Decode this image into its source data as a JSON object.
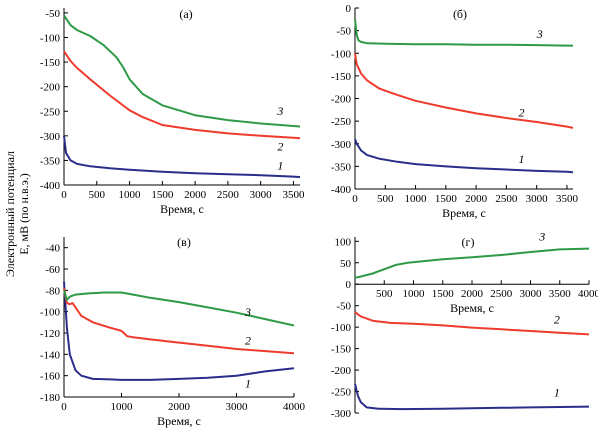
{
  "figure": {
    "ylabel_line1": "Электронный потенциал",
    "ylabel_line2": "E, мВ (по н.в.э.)"
  },
  "colors": {
    "1": "#2a2d8a",
    "2": "#ee3b2e",
    "3": "#2e9a45",
    "axis": "#000000"
  },
  "chart_data": [
    {
      "type": "line",
      "panel": "(а)",
      "xlabel": "Время, с",
      "ylabel": "",
      "xlim": [
        0,
        3600
      ],
      "ylim": [
        -400,
        -40
      ],
      "xticks": [
        0,
        500,
        1000,
        1500,
        2000,
        2500,
        3000,
        3500
      ],
      "yticks": [
        -400,
        -350,
        -300,
        -250,
        -200,
        -150,
        -100,
        -50
      ],
      "series": [
        {
          "name": "1",
          "x": [
            0,
            30,
            100,
            200,
            400,
            700,
            1000,
            1500,
            2000,
            2500,
            3000,
            3500,
            3600
          ],
          "y": [
            -300,
            -335,
            -350,
            -357,
            -362,
            -366,
            -369,
            -373,
            -376,
            -378,
            -380,
            -383,
            -384
          ]
        },
        {
          "name": "2",
          "x": [
            0,
            100,
            200,
            400,
            700,
            1000,
            1200,
            1500,
            2000,
            2500,
            3000,
            3500,
            3600
          ],
          "y": [
            -128,
            -148,
            -162,
            -185,
            -218,
            -248,
            -262,
            -278,
            -288,
            -295,
            -300,
            -304,
            -305
          ]
        },
        {
          "name": "3",
          "x": [
            0,
            100,
            200,
            400,
            600,
            800,
            900,
            1000,
            1200,
            1500,
            2000,
            2500,
            3000,
            3500,
            3600
          ],
          "y": [
            -55,
            -75,
            -85,
            -97,
            -115,
            -140,
            -160,
            -185,
            -215,
            -238,
            -258,
            -268,
            -275,
            -280,
            -281
          ]
        }
      ],
      "curve_labels": [
        {
          "series": "1",
          "text": "1"
        },
        {
          "series": "2",
          "text": "2"
        },
        {
          "series": "3",
          "text": "3"
        }
      ]
    },
    {
      "type": "line",
      "panel": "(б)",
      "xlabel": "Время, с",
      "ylabel": "",
      "xlim": [
        0,
        3600
      ],
      "ylim": [
        -400,
        0
      ],
      "xticks": [
        0,
        500,
        1000,
        1500,
        2000,
        2500,
        3000,
        3500
      ],
      "yticks": [
        -400,
        -350,
        -300,
        -250,
        -200,
        -150,
        -100,
        -50,
        0
      ],
      "series": [
        {
          "name": "1",
          "x": [
            0,
            30,
            100,
            200,
            400,
            700,
            1000,
            1500,
            2000,
            2500,
            3000,
            3500,
            3600
          ],
          "y": [
            -290,
            -300,
            -315,
            -325,
            -333,
            -340,
            -345,
            -350,
            -354,
            -357,
            -360,
            -362,
            -363
          ]
        },
        {
          "name": "2",
          "x": [
            0,
            30,
            100,
            200,
            400,
            700,
            1000,
            1500,
            2000,
            2500,
            3000,
            3500,
            3600
          ],
          "y": [
            -100,
            -125,
            -145,
            -160,
            -178,
            -192,
            -205,
            -220,
            -233,
            -243,
            -252,
            -262,
            -265
          ]
        },
        {
          "name": "3",
          "x": [
            0,
            30,
            60,
            100,
            200,
            500,
            1000,
            1500,
            2000,
            2500,
            3000,
            3500,
            3600
          ],
          "y": [
            -25,
            -60,
            -72,
            -75,
            -78,
            -79,
            -80,
            -80,
            -81,
            -81,
            -82,
            -83,
            -83
          ]
        }
      ],
      "curve_labels": [
        {
          "series": "1",
          "text": "1"
        },
        {
          "series": "2",
          "text": "2"
        },
        {
          "series": "3",
          "text": "3"
        }
      ]
    },
    {
      "type": "line",
      "panel": "(в)",
      "xlabel": "Время, с",
      "ylabel": "",
      "xlim": [
        0,
        4000
      ],
      "ylim": [
        -180,
        -30
      ],
      "xticks": [
        0,
        1000,
        2000,
        3000,
        4000
      ],
      "yticks": [
        -180,
        -160,
        -140,
        -120,
        -100,
        -80,
        -60,
        -40
      ],
      "series": [
        {
          "name": "1",
          "x": [
            0,
            50,
            100,
            200,
            300,
            500,
            800,
            1000,
            1500,
            2000,
            2500,
            3000,
            3500,
            4000
          ],
          "y": [
            -72,
            -115,
            -140,
            -155,
            -160,
            -163,
            -163.5,
            -164,
            -164,
            -163,
            -162,
            -160,
            -156,
            -153
          ]
        },
        {
          "name": "2",
          "x": [
            0,
            50,
            100,
            150,
            200,
            300,
            500,
            800,
            1000,
            1100,
            1200,
            1500,
            2000,
            2500,
            3000,
            3500,
            4000
          ],
          "y": [
            -78,
            -92,
            -93,
            -92,
            -96,
            -104,
            -110,
            -115,
            -118,
            -123,
            -124,
            -126,
            -129,
            -132,
            -135,
            -137,
            -139
          ]
        },
        {
          "name": "3",
          "x": [
            0,
            50,
            100,
            200,
            400,
            700,
            1000,
            1200,
            1500,
            2000,
            2500,
            3000,
            3500,
            4000
          ],
          "y": [
            -80,
            -89,
            -86,
            -84,
            -83,
            -82,
            -82,
            -84,
            -87,
            -91,
            -96,
            -101,
            -107,
            -113
          ]
        }
      ],
      "curve_labels": [
        {
          "series": "1",
          "text": "1"
        },
        {
          "series": "2",
          "text": "2"
        },
        {
          "series": "3",
          "text": "3"
        }
      ]
    },
    {
      "type": "line",
      "panel": "(г)",
      "xlabel": "Время, с",
      "ylabel": "",
      "xlim": [
        0,
        4000
      ],
      "ylim": [
        -300,
        110
      ],
      "xticks": [
        500,
        1000,
        1500,
        2000,
        2500,
        3000,
        3500,
        4000
      ],
      "yticks": [
        -300,
        -250,
        -200,
        -150,
        -100,
        -50,
        0,
        50,
        100
      ],
      "series": [
        {
          "name": "1",
          "x": [
            0,
            50,
            100,
            200,
            400,
            800,
            1500,
            2000,
            2500,
            3000,
            3500,
            4000
          ],
          "y": [
            -232,
            -260,
            -275,
            -287,
            -290,
            -291,
            -290,
            -289,
            -288,
            -287,
            -286,
            -285
          ]
        },
        {
          "name": "2",
          "x": [
            0,
            50,
            100,
            300,
            600,
            1000,
            1500,
            2000,
            2500,
            3000,
            3500,
            4000
          ],
          "y": [
            -65,
            -70,
            -75,
            -85,
            -90,
            -92,
            -96,
            -101,
            -105,
            -109,
            -113,
            -117
          ]
        },
        {
          "name": "3",
          "x": [
            0,
            100,
            300,
            500,
            700,
            900,
            1500,
            2000,
            2500,
            3000,
            3500,
            4000
          ],
          "y": [
            15,
            18,
            25,
            35,
            45,
            50,
            58,
            63,
            68,
            75,
            81,
            83
          ]
        }
      ],
      "curve_labels": [
        {
          "series": "1",
          "text": "1"
        },
        {
          "series": "2",
          "text": "2"
        },
        {
          "series": "3",
          "text": "3"
        }
      ]
    }
  ]
}
